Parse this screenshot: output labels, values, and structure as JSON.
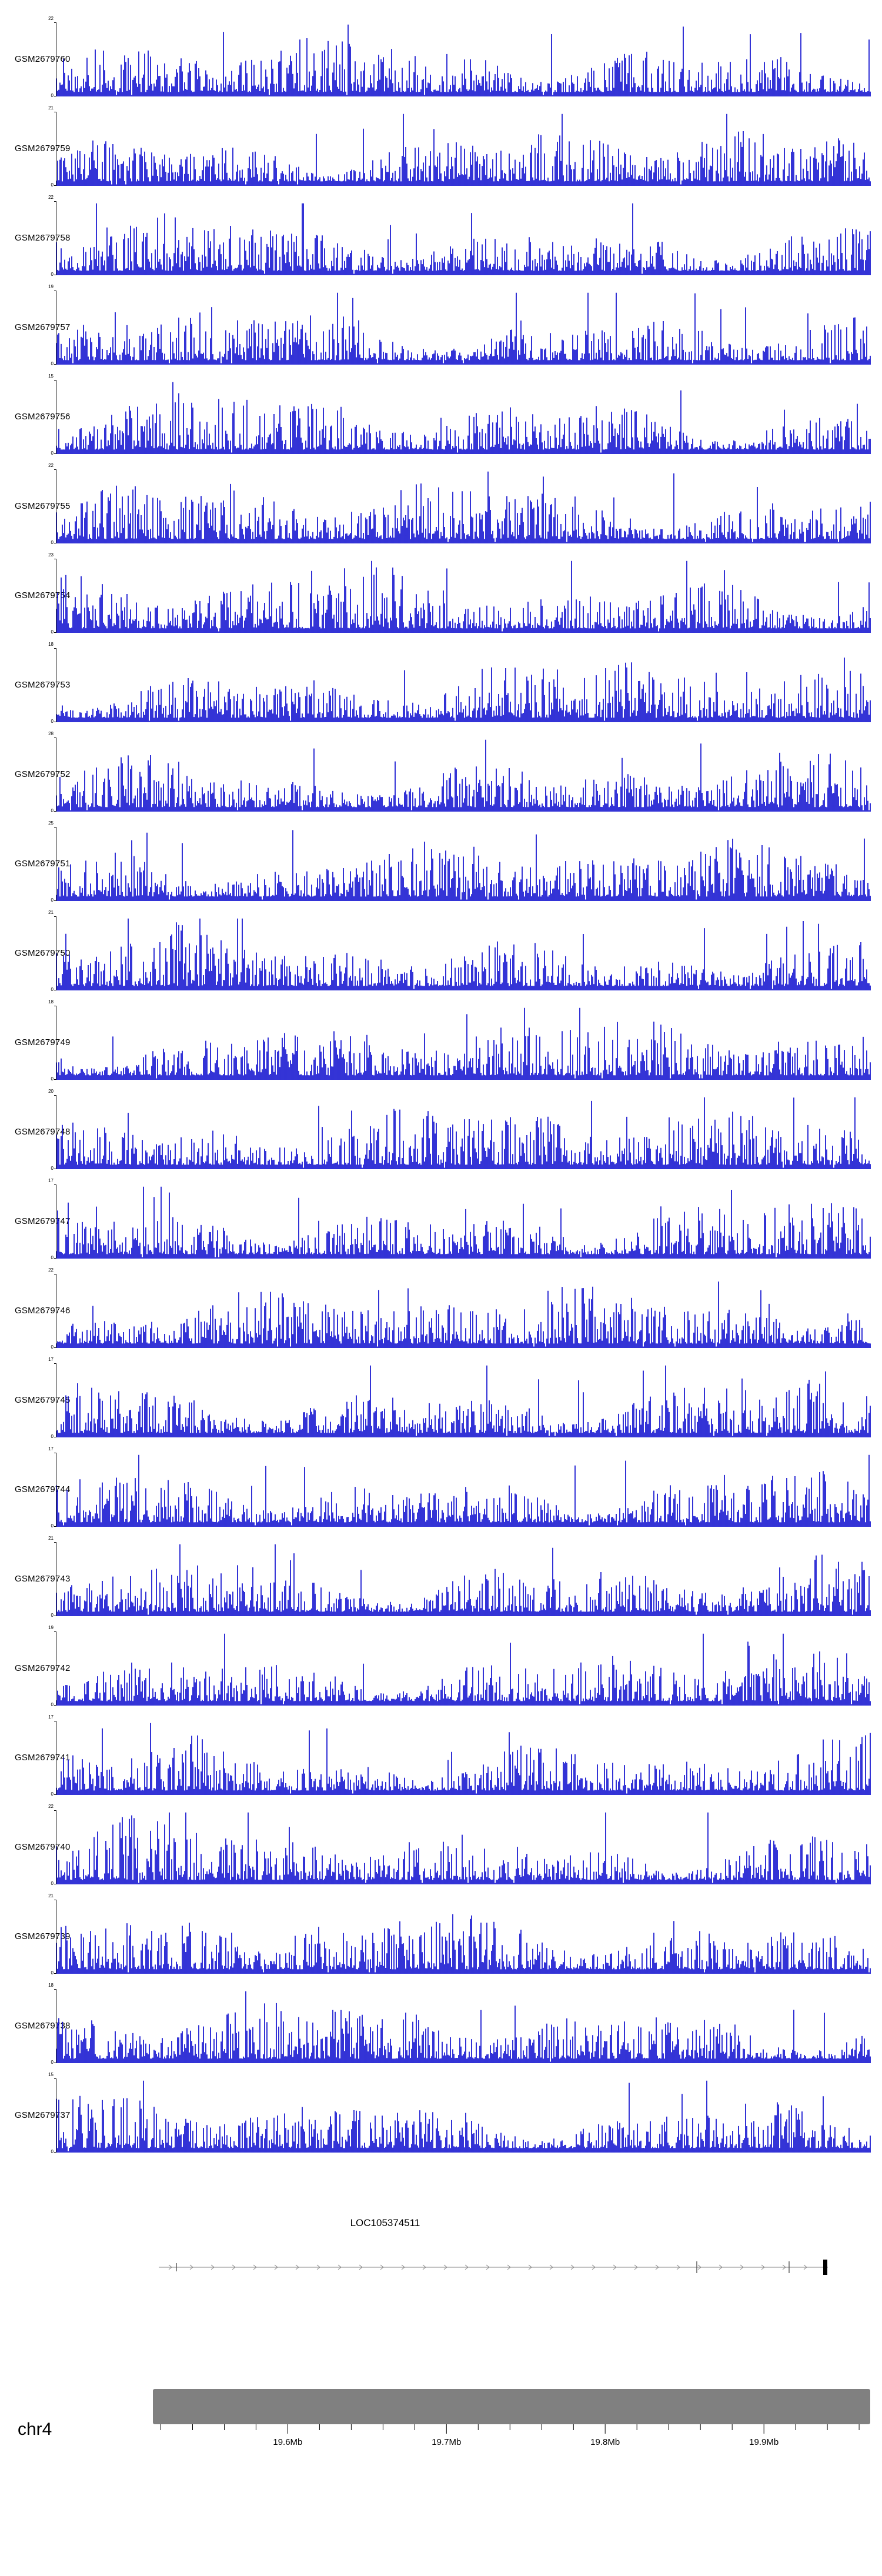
{
  "chart_data": {
    "type": "area",
    "chromosome": "chr4",
    "region": {
      "start_mb": 19.515,
      "end_mb": 19.967,
      "unit": "Mb"
    },
    "x_ticks": [
      {
        "label": "19.6Mb",
        "mb": 19.6
      },
      {
        "label": "19.7Mb",
        "mb": 19.7
      },
      {
        "label": "19.8Mb",
        "mb": 19.8
      },
      {
        "label": "19.9Mb",
        "mb": 19.9
      }
    ],
    "gene_track": {
      "name": "LOC105374511",
      "direction": "right"
    },
    "tracks": [
      {
        "label": "GSM2679760",
        "ymax": 22,
        "ymin": 0
      },
      {
        "label": "GSM2679759",
        "ymax": 21,
        "ymin": 0
      },
      {
        "label": "GSM2679758",
        "ymax": 22,
        "ymin": 0
      },
      {
        "label": "GSM2679757",
        "ymax": 19,
        "ymin": 0
      },
      {
        "label": "GSM2679756",
        "ymax": 15,
        "ymin": 0
      },
      {
        "label": "GSM2679755",
        "ymax": 22,
        "ymin": 0
      },
      {
        "label": "GSM2679754",
        "ymax": 23,
        "ymin": 0
      },
      {
        "label": "GSM2679753",
        "ymax": 18,
        "ymin": 0
      },
      {
        "label": "GSM2679752",
        "ymax": 28,
        "ymin": 0
      },
      {
        "label": "GSM2679751",
        "ymax": 25,
        "ymin": 0
      },
      {
        "label": "GSM2679750",
        "ymax": 21,
        "ymin": 0
      },
      {
        "label": "GSM2679749",
        "ymax": 18,
        "ymin": 0
      },
      {
        "label": "GSM2679748",
        "ymax": 20,
        "ymin": 0
      },
      {
        "label": "GSM2679747",
        "ymax": 17,
        "ymin": 0
      },
      {
        "label": "GSM2679746",
        "ymax": 22,
        "ymin": 0
      },
      {
        "label": "GSM2679745",
        "ymax": 17,
        "ymin": 0
      },
      {
        "label": "GSM2679744",
        "ymax": 17,
        "ymin": 0
      },
      {
        "label": "GSM2679743",
        "ymax": 21,
        "ymin": 0
      },
      {
        "label": "GSM2679742",
        "ymax": 19,
        "ymin": 0
      },
      {
        "label": "GSM2679741",
        "ymax": 17,
        "ymin": 0
      },
      {
        "label": "GSM2679740",
        "ymax": 22,
        "ymin": 0
      },
      {
        "label": "GSM2679739",
        "ymax": 21,
        "ymin": 0
      },
      {
        "label": "GSM2679738",
        "ymax": 18,
        "ymin": 0
      },
      {
        "label": "GSM2679737",
        "ymax": 15,
        "ymin": 0
      }
    ],
    "colors": {
      "coverage": "#0000CC",
      "ideogram": "#808080",
      "axis": "#000000",
      "gene_line": "#8a8a8a",
      "gene_exon": "#000000"
    }
  }
}
